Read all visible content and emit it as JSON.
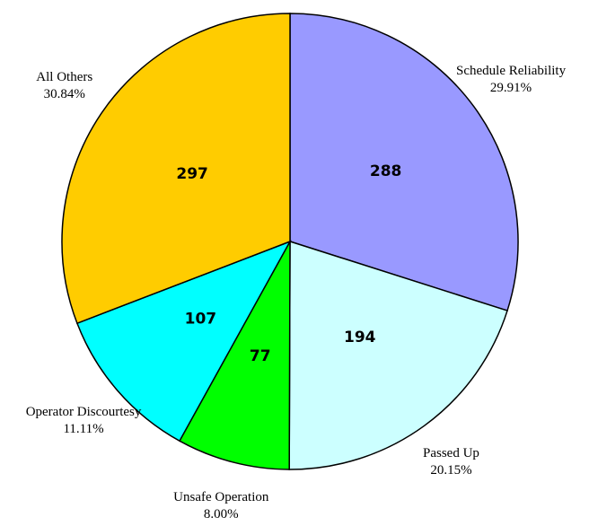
{
  "chart_data": {
    "type": "pie",
    "categories": [
      "Schedule Reliability",
      "Passed Up",
      "Unsafe Operation",
      "Operator Discourtesy",
      "All Others"
    ],
    "values": [
      288,
      194,
      77,
      107,
      297
    ],
    "percent_labels": [
      "29.91%",
      "20.15%",
      "8.00%",
      "11.11%",
      "30.84%"
    ],
    "colors": [
      "#9999ff",
      "#ccffff",
      "#00ff00",
      "#00ffff",
      "#ffcc00"
    ]
  }
}
